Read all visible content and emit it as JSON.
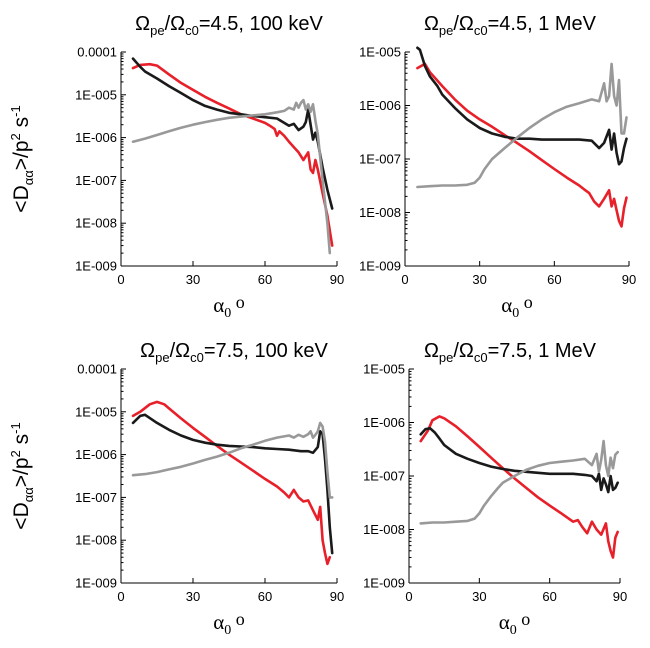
{
  "colors": {
    "red": "#e8202a",
    "black": "#1a1a1a",
    "gray": "#999999"
  },
  "chart_data": [
    {
      "type": "line",
      "title_parts": [
        "Ω",
        "pe",
        "/Ω",
        "c0",
        "=4.5, 100 keV"
      ],
      "xlabel_parts": [
        "α",
        "0",
        " o"
      ],
      "ylabel_parts": [
        "<D",
        "αα",
        ">/p",
        "2",
        " s",
        "-1"
      ],
      "xlim": [
        0,
        90
      ],
      "xticks": [
        "0",
        "30",
        "60",
        "90"
      ],
      "ylog": [
        -9,
        -4
      ],
      "yticks": [
        "1E-009",
        "1E-008",
        "1E-007",
        "1E-006",
        "1E-005",
        "0.0001"
      ],
      "series": [
        {
          "color": "red",
          "x": [
            5,
            8,
            12,
            15,
            20,
            25,
            30,
            35,
            40,
            45,
            50,
            55,
            60,
            62,
            64,
            65,
            66,
            68,
            70,
            72,
            74,
            76,
            78,
            79,
            80,
            81,
            82,
            84,
            86,
            88
          ],
          "y": [
            4.2e-05,
            5e-05,
            5.2e-05,
            4.8e-05,
            3e-05,
            1.9e-05,
            1.3e-05,
            9e-06,
            6.5e-06,
            4.8e-06,
            3.5e-06,
            2.8e-06,
            2.2e-06,
            1.9e-06,
            1.6e-06,
            1.1e-06,
            1.4e-06,
            1.1e-06,
            8e-07,
            6e-07,
            4.5e-07,
            3e-07,
            4.5e-07,
            1.8e-07,
            1.5e-07,
            3e-07,
            1.8e-07,
            5e-08,
            1.5e-08,
            3e-09
          ]
        },
        {
          "color": "black",
          "x": [
            5,
            8,
            10,
            15,
            20,
            25,
            30,
            35,
            40,
            45,
            50,
            55,
            60,
            65,
            70,
            72,
            74,
            76,
            77,
            78,
            79,
            80,
            81,
            82,
            84,
            86,
            88
          ],
          "y": [
            7e-05,
            4.5e-05,
            3.5e-05,
            2.4e-05,
            1.6e-05,
            1.1e-05,
            7.5e-06,
            5.5e-06,
            4.5e-06,
            3.8e-06,
            3.5e-06,
            3.2e-06,
            3e-06,
            2.8e-06,
            1.9e-06,
            2.1e-06,
            1.5e-06,
            1.8e-06,
            2.3e-06,
            4.5e-06,
            2e-06,
            9e-07,
            1.3e-06,
            8e-07,
            2e-07,
            6e-08,
            2.2e-08
          ]
        },
        {
          "color": "gray",
          "x": [
            5,
            10,
            15,
            20,
            25,
            30,
            35,
            40,
            45,
            50,
            55,
            60,
            65,
            68,
            70,
            72,
            73,
            74,
            75,
            76,
            77,
            78,
            79,
            80,
            81,
            82,
            84,
            86,
            87
          ],
          "y": [
            8e-07,
            9.5e-07,
            1.15e-06,
            1.4e-06,
            1.7e-06,
            2e-06,
            2.3e-06,
            2.6e-06,
            2.9e-06,
            3.1e-06,
            3.3e-06,
            3.5e-06,
            3.9e-06,
            4.2e-06,
            5e-06,
            4.5e-06,
            6.5e-06,
            5e-06,
            6.5e-06,
            7.5e-06,
            4.5e-06,
            6e-06,
            4e-06,
            6e-06,
            2.5e-06,
            1.2e-06,
            1e-07,
            1e-08,
            2e-09
          ]
        }
      ]
    },
    {
      "type": "line",
      "title_parts": [
        "Ω",
        "pe",
        "/Ω",
        "c0",
        "=4.5, 1 MeV"
      ],
      "xlabel_parts": [
        "α",
        "0",
        " o"
      ],
      "ylabel_parts": [],
      "xlim": [
        0,
        90
      ],
      "xticks": [
        "0",
        "30",
        "60",
        "90"
      ],
      "ylog": [
        -9,
        -5
      ],
      "yticks": [
        "1E-009",
        "1E-008",
        "1E-007",
        "1E-006",
        "1E-005"
      ],
      "series": [
        {
          "color": "red",
          "x": [
            5,
            8,
            10,
            15,
            20,
            25,
            30,
            35,
            40,
            45,
            50,
            55,
            60,
            65,
            70,
            72,
            74,
            76,
            78,
            80,
            82,
            83,
            84,
            85,
            86,
            87,
            88,
            89
          ],
          "y": [
            5e-06,
            6e-06,
            4.2e-06,
            2.3e-06,
            1.3e-06,
            8e-07,
            5.5e-07,
            4e-07,
            2.8e-07,
            2e-07,
            1.4e-07,
            9.5e-08,
            6.5e-08,
            4.5e-08,
            3.2e-08,
            2.7e-08,
            2.3e-08,
            1.6e-08,
            1.3e-08,
            1.8e-08,
            2.6e-08,
            1.3e-08,
            1.8e-08,
            1.1e-08,
            7e-09,
            5.5e-09,
            1.2e-08,
            1.9e-08
          ]
        },
        {
          "color": "black",
          "x": [
            5,
            6,
            8,
            10,
            13,
            15,
            20,
            25,
            30,
            35,
            40,
            45,
            50,
            55,
            60,
            65,
            70,
            75,
            78,
            80,
            82,
            83,
            84,
            85,
            86,
            87,
            88,
            89
          ],
          "y": [
            1.2e-05,
            1.1e-05,
            5.5e-06,
            3.5e-06,
            2.3e-06,
            1.6e-06,
            9e-07,
            5.5e-07,
            3.8e-07,
            3e-07,
            2.6e-07,
            2.4e-07,
            2.4e-07,
            2.3e-07,
            2.3e-07,
            2.3e-07,
            2.3e-07,
            2.2e-07,
            1.6e-07,
            2e-07,
            3.5e-07,
            1.5e-07,
            3e-07,
            1.3e-07,
            8e-08,
            9e-08,
            1.6e-07,
            2.4e-07
          ]
        },
        {
          "color": "gray",
          "x": [
            5,
            10,
            15,
            20,
            25,
            28,
            30,
            32,
            35,
            40,
            45,
            50,
            55,
            60,
            65,
            70,
            75,
            78,
            80,
            81,
            82,
            83,
            84,
            85,
            86,
            87,
            88,
            89
          ],
          "y": [
            3e-08,
            3.1e-08,
            3.2e-08,
            3.2e-08,
            3.3e-08,
            3.6e-08,
            4.5e-08,
            6.5e-08,
            1e-07,
            1.6e-07,
            2.5e-07,
            3.8e-07,
            5.5e-07,
            7.5e-07,
            9.5e-07,
            1.1e-06,
            1.3e-06,
            1.2e-06,
            2.6e-06,
            1.2e-06,
            1.5e-06,
            6e-06,
            1.5e-06,
            1e-06,
            3e-06,
            3e-07,
            3e-07,
            6e-07
          ]
        }
      ]
    },
    {
      "type": "line",
      "title_parts": [
        "Ω",
        "pe",
        "/Ω",
        "c0",
        "=7.5, 100 keV"
      ],
      "xlabel_parts": [
        "α",
        "0",
        " o"
      ],
      "ylabel_parts": [
        "<D",
        "αα",
        ">/p",
        "2",
        " s",
        "-1"
      ],
      "xlim": [
        0,
        90
      ],
      "xticks": [
        "0",
        "30",
        "60",
        "90"
      ],
      "ylog": [
        -9,
        -4
      ],
      "yticks": [
        "1E-009",
        "1E-008",
        "1E-007",
        "1E-006",
        "1E-005",
        "0.0001"
      ],
      "series": [
        {
          "color": "red",
          "x": [
            5,
            8,
            12,
            15,
            18,
            20,
            25,
            30,
            35,
            40,
            45,
            50,
            55,
            60,
            65,
            68,
            70,
            72,
            74,
            76,
            78,
            80,
            82,
            83,
            84,
            85,
            86,
            87
          ],
          "y": [
            8e-06,
            1e-05,
            1.5e-05,
            1.7e-05,
            1.5e-05,
            1.2e-05,
            7e-06,
            4.2e-06,
            2.6e-06,
            1.6e-06,
            1e-06,
            6.5e-07,
            4.2e-07,
            2.7e-07,
            1.8e-07,
            1.3e-07,
            1e-07,
            1.5e-07,
            1e-07,
            8e-08,
            8.5e-08,
            5e-08,
            3e-08,
            6e-08,
            1e-08,
            5e-09,
            2.8e-09,
            4e-09
          ]
        },
        {
          "color": "black",
          "x": [
            5,
            8,
            10,
            15,
            20,
            25,
            30,
            35,
            40,
            45,
            50,
            55,
            60,
            65,
            70,
            75,
            78,
            80,
            82,
            83,
            84,
            85,
            86,
            87,
            88
          ],
          "y": [
            5.5e-06,
            8e-06,
            8.5e-06,
            5.5e-06,
            3.8e-06,
            2.8e-06,
            2.2e-06,
            1.9e-06,
            1.7e-06,
            1.6e-06,
            1.55e-06,
            1.5e-06,
            1.4e-06,
            1.35e-06,
            1.3e-06,
            1.2e-06,
            1.2e-06,
            1.1e-06,
            1.5e-06,
            3.5e-06,
            3e-06,
            8e-07,
            1.5e-07,
            2e-08,
            5e-09
          ]
        },
        {
          "color": "gray",
          "x": [
            5,
            10,
            15,
            20,
            25,
            30,
            35,
            40,
            45,
            50,
            55,
            60,
            65,
            70,
            72,
            74,
            76,
            78,
            79,
            80,
            81,
            82,
            83,
            84,
            85,
            86,
            87,
            88
          ],
          "y": [
            3.3e-07,
            3.5e-07,
            3.9e-07,
            4.5e-07,
            5.2e-07,
            6.2e-07,
            7.5e-07,
            9e-07,
            1.1e-06,
            1.4e-06,
            1.7e-06,
            2.1e-06,
            2.5e-06,
            2.8e-06,
            2.5e-06,
            2.9e-06,
            2.6e-06,
            3e-06,
            3.5e-06,
            2.5e-06,
            2.9e-06,
            3.5e-06,
            5.5e-06,
            4.5e-06,
            2e-06,
            4e-07,
            1e-07,
            1e-07
          ]
        }
      ]
    },
    {
      "type": "line",
      "title_parts": [
        "Ω",
        "pe",
        "/Ω",
        "c0",
        "=7.5, 1 MeV"
      ],
      "xlabel_parts": [
        "α",
        "0",
        " o"
      ],
      "ylabel_parts": [],
      "xlim": [
        0,
        90
      ],
      "xticks": [
        "0",
        "30",
        "60",
        "90"
      ],
      "ylog": [
        -9,
        -5
      ],
      "yticks": [
        "1E-009",
        "1E-008",
        "1E-007",
        "1E-006",
        "1E-005"
      ],
      "series": [
        {
          "color": "red",
          "x": [
            5,
            8,
            10,
            13,
            15,
            20,
            25,
            30,
            35,
            40,
            45,
            50,
            55,
            60,
            65,
            70,
            72,
            74,
            76,
            78,
            80,
            82,
            84,
            85,
            86,
            87,
            88,
            89
          ],
          "y": [
            4.5e-07,
            7e-07,
            1.1e-06,
            1.3e-06,
            1.2e-06,
            8.5e-07,
            5.5e-07,
            3.5e-07,
            2.2e-07,
            1.4e-07,
            9e-08,
            6e-08,
            4e-08,
            2.8e-08,
            2e-08,
            1.4e-08,
            1.5e-08,
            1.1e-08,
            8.5e-09,
            1.4e-08,
            1e-08,
            8e-09,
            1.3e-08,
            6e-09,
            4e-09,
            3e-09,
            7e-09,
            9e-09
          ]
        },
        {
          "color": "black",
          "x": [
            5,
            7,
            9,
            11,
            13,
            15,
            20,
            25,
            30,
            35,
            40,
            45,
            50,
            55,
            60,
            65,
            70,
            75,
            78,
            80,
            81,
            82,
            83,
            84,
            85,
            86,
            87,
            88,
            89
          ],
          "y": [
            6e-07,
            7.5e-07,
            7.8e-07,
            6.5e-07,
            5e-07,
            3.8e-07,
            2.6e-07,
            2.1e-07,
            1.75e-07,
            1.5e-07,
            1.35e-07,
            1.25e-07,
            1.2e-07,
            1.15e-07,
            1.1e-07,
            1.1e-07,
            1.1e-07,
            1.05e-07,
            1e-07,
            8e-08,
            1.1e-07,
            5.5e-08,
            9e-08,
            7e-08,
            5e-08,
            1e-07,
            5.5e-08,
            6e-08,
            7.5e-08
          ]
        },
        {
          "color": "gray",
          "x": [
            5,
            10,
            15,
            20,
            25,
            28,
            30,
            32,
            35,
            38,
            40,
            45,
            50,
            55,
            60,
            65,
            70,
            75,
            78,
            80,
            81,
            82,
            83,
            84,
            85,
            86,
            87,
            88,
            89
          ],
          "y": [
            1.3e-08,
            1.35e-08,
            1.35e-08,
            1.4e-08,
            1.45e-08,
            1.6e-08,
            2e-08,
            2.8e-08,
            4.2e-08,
            6e-08,
            7.5e-08,
            1e-07,
            1.3e-07,
            1.55e-07,
            1.75e-07,
            1.85e-07,
            1.95e-07,
            2.1e-07,
            1.6e-07,
            2.6e-07,
            1.2e-07,
            2e-07,
            4.5e-07,
            1.6e-07,
            1e-07,
            2.2e-07,
            1.4e-07,
            2.5e-07,
            2.8e-07
          ]
        }
      ]
    }
  ]
}
